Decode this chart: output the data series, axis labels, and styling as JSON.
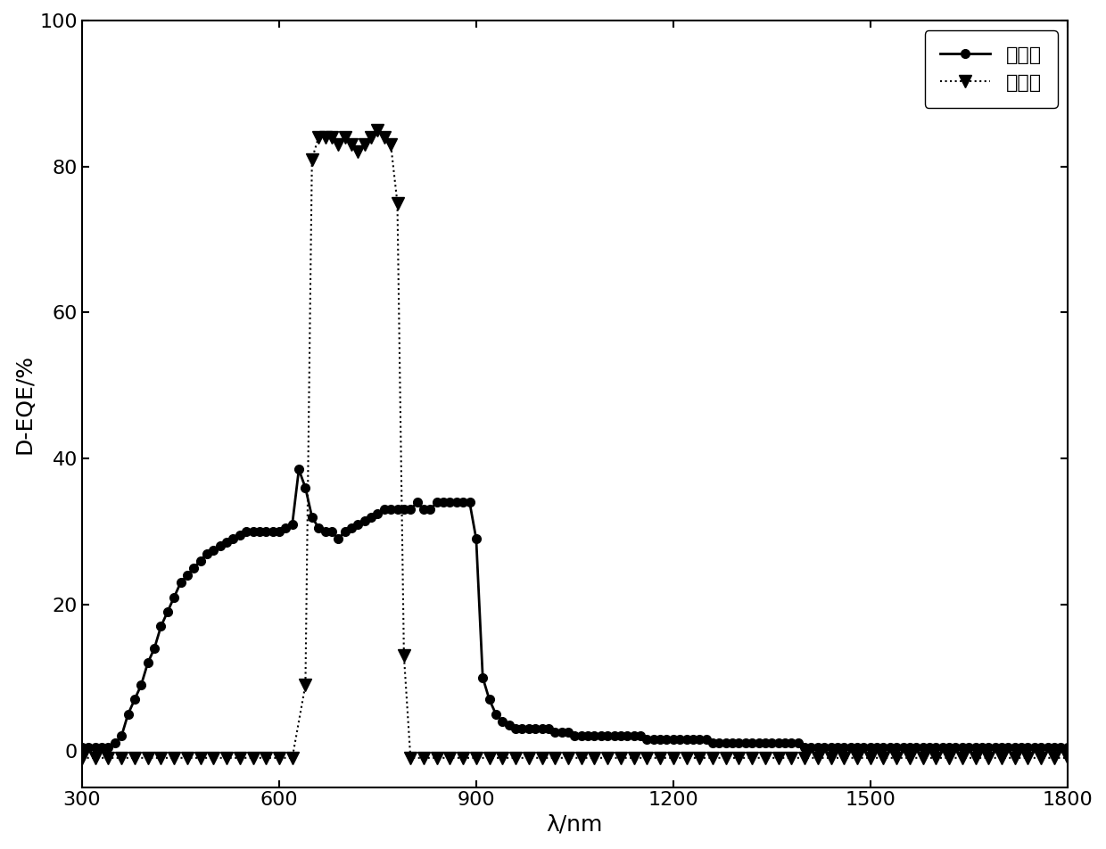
{
  "title": "",
  "xlabel": "λ/nm",
  "ylabel": "D-EQE/%",
  "xlim": [
    300,
    1800
  ],
  "ylim": [
    -5,
    100
  ],
  "yticks": [
    0,
    20,
    40,
    60,
    80,
    100
  ],
  "xticks": [
    300,
    600,
    900,
    1200,
    1500,
    1800
  ],
  "background_color": "#ffffff",
  "line1_label": "辐照前",
  "line2_label": "辐照后",
  "line1_color": "#000000",
  "line2_color": "#000000",
  "line1_style": "-",
  "line2_style": ":",
  "line1_marker": "o",
  "line2_marker": "v",
  "line1_x": [
    300,
    310,
    320,
    330,
    340,
    350,
    360,
    370,
    380,
    390,
    400,
    410,
    420,
    430,
    440,
    450,
    460,
    470,
    480,
    490,
    500,
    510,
    520,
    530,
    540,
    550,
    560,
    570,
    580,
    590,
    600,
    610,
    620,
    630,
    640,
    650,
    660,
    670,
    680,
    690,
    700,
    710,
    720,
    730,
    740,
    750,
    760,
    770,
    780,
    790,
    800,
    810,
    820,
    830,
    840,
    850,
    860,
    870,
    880,
    890,
    900,
    910,
    920,
    930,
    940,
    950,
    960,
    970,
    980,
    990,
    1000,
    1010,
    1020,
    1030,
    1040,
    1050,
    1060,
    1070,
    1080,
    1090,
    1100,
    1110,
    1120,
    1130,
    1140,
    1150,
    1160,
    1170,
    1180,
    1190,
    1200,
    1210,
    1220,
    1230,
    1240,
    1250,
    1260,
    1270,
    1280,
    1290,
    1300,
    1310,
    1320,
    1330,
    1340,
    1350,
    1360,
    1370,
    1380,
    1390,
    1400,
    1410,
    1420,
    1430,
    1440,
    1450,
    1460,
    1470,
    1480,
    1490,
    1500,
    1510,
    1520,
    1530,
    1540,
    1550,
    1560,
    1570,
    1580,
    1590,
    1600,
    1610,
    1620,
    1630,
    1640,
    1650,
    1660,
    1670,
    1680,
    1690,
    1700,
    1710,
    1720,
    1730,
    1740,
    1750,
    1760,
    1770,
    1780,
    1790,
    1800
  ],
  "line1_y": [
    0.5,
    0.5,
    0.5,
    0.5,
    0.5,
    1.0,
    2.0,
    5.0,
    7.0,
    9.0,
    12.0,
    14.0,
    17.0,
    19.0,
    21.0,
    23.0,
    24.0,
    25.0,
    26.0,
    27.0,
    27.5,
    28.0,
    28.5,
    29.0,
    29.5,
    30.0,
    30.0,
    30.0,
    30.0,
    30.0,
    30.0,
    30.5,
    31.0,
    38.5,
    36.0,
    32.0,
    30.5,
    30.0,
    30.0,
    29.0,
    30.0,
    30.5,
    31.0,
    31.5,
    32.0,
    32.5,
    33.0,
    33.0,
    33.0,
    33.0,
    33.0,
    34.0,
    33.0,
    33.0,
    34.0,
    34.0,
    34.0,
    34.0,
    34.0,
    34.0,
    29.0,
    10.0,
    7.0,
    5.0,
    4.0,
    3.5,
    3.0,
    3.0,
    3.0,
    3.0,
    3.0,
    3.0,
    2.5,
    2.5,
    2.5,
    2.0,
    2.0,
    2.0,
    2.0,
    2.0,
    2.0,
    2.0,
    2.0,
    2.0,
    2.0,
    2.0,
    1.5,
    1.5,
    1.5,
    1.5,
    1.5,
    1.5,
    1.5,
    1.5,
    1.5,
    1.5,
    1.0,
    1.0,
    1.0,
    1.0,
    1.0,
    1.0,
    1.0,
    1.0,
    1.0,
    1.0,
    1.0,
    1.0,
    1.0,
    1.0,
    0.5,
    0.5,
    0.5,
    0.5,
    0.5,
    0.5,
    0.5,
    0.5,
    0.5,
    0.5,
    0.5,
    0.5,
    0.5,
    0.5,
    0.5,
    0.5,
    0.5,
    0.5,
    0.5,
    0.5,
    0.5,
    0.5,
    0.5,
    0.5,
    0.5,
    0.5,
    0.5,
    0.5,
    0.5,
    0.5,
    0.5,
    0.5,
    0.5,
    0.5,
    0.5,
    0.5,
    0.5,
    0.5,
    0.5,
    0.5,
    0.5
  ],
  "line2_x": [
    300,
    320,
    340,
    360,
    380,
    400,
    420,
    440,
    460,
    480,
    500,
    520,
    540,
    560,
    580,
    600,
    620,
    640,
    650,
    660,
    670,
    680,
    690,
    700,
    710,
    720,
    730,
    740,
    750,
    760,
    770,
    780,
    790,
    800,
    820,
    840,
    860,
    880,
    900,
    920,
    940,
    960,
    980,
    1000,
    1020,
    1040,
    1060,
    1080,
    1100,
    1120,
    1140,
    1160,
    1180,
    1200,
    1220,
    1240,
    1260,
    1280,
    1300,
    1320,
    1340,
    1360,
    1380,
    1400,
    1420,
    1440,
    1460,
    1480,
    1500,
    1520,
    1540,
    1560,
    1580,
    1600,
    1620,
    1640,
    1660,
    1680,
    1700,
    1720,
    1740,
    1760,
    1780,
    1800
  ],
  "line2_y": [
    -1.0,
    -1.0,
    -1.0,
    -1.0,
    -1.0,
    -1.0,
    -1.0,
    -1.0,
    -1.0,
    -1.0,
    -1.0,
    -1.0,
    -1.0,
    -1.0,
    -1.0,
    -1.0,
    -1.0,
    9.0,
    81.0,
    84.0,
    84.0,
    84.0,
    83.0,
    84.0,
    83.0,
    82.0,
    83.0,
    84.0,
    85.0,
    84.0,
    83.0,
    75.0,
    13.0,
    -1.0,
    -1.0,
    -1.0,
    -1.0,
    -1.0,
    -1.0,
    -1.0,
    -1.0,
    -1.0,
    -1.0,
    -1.0,
    -1.0,
    -1.0,
    -1.0,
    -1.0,
    -1.0,
    -1.0,
    -1.0,
    -1.0,
    -1.0,
    -1.0,
    -1.0,
    -1.0,
    -1.0,
    -1.0,
    -1.0,
    -1.0,
    -1.0,
    -1.0,
    -1.0,
    -1.0,
    -1.0,
    -1.0,
    -1.0,
    -1.0,
    -1.0,
    -1.0,
    -1.0,
    -1.0,
    -1.0,
    -1.0,
    -1.0,
    -1.0,
    -1.0,
    -1.0,
    -1.0,
    -1.0,
    -1.0,
    -1.0,
    -1.0,
    -1.0
  ]
}
